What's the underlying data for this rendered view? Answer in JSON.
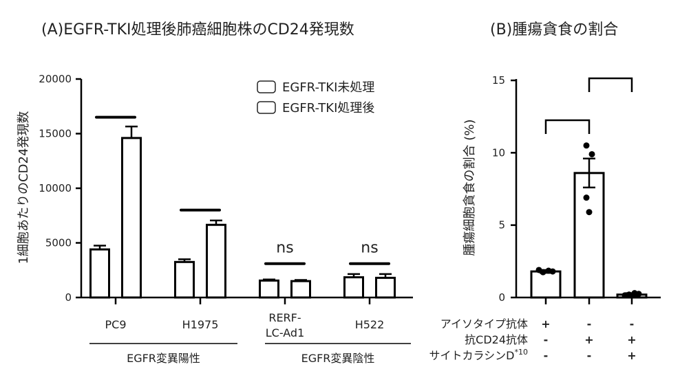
{
  "colors": {
    "ink": "#000000",
    "text": "#222222",
    "bar_fill": "#ffffff"
  },
  "chart_data": [
    {
      "type": "bar",
      "title": "(A)EGFR-TKI処理後肺癌細胞株のCD24発現数",
      "ylabel": "1細胞あたりのCD24発現数",
      "ylim": [
        0,
        20000
      ],
      "yticks": [
        "0",
        "5000",
        "10000",
        "15000",
        "20000"
      ],
      "categories": [
        "PC9",
        "H1975",
        "RERF-LC-Ad1",
        "H522"
      ],
      "category_label_lines": [
        [
          "PC9"
        ],
        [
          "H1975"
        ],
        [
          "RERF-",
          "LC-Ad1"
        ],
        [
          "H522"
        ]
      ],
      "series": [
        {
          "name": "EGFR-TKI未処理",
          "values": [
            4400,
            3250,
            1550,
            1850
          ],
          "errors": [
            350,
            250,
            100,
            300
          ]
        },
        {
          "name": "EGFR-TKI処理後",
          "values": [
            14600,
            6650,
            1500,
            1800
          ],
          "errors": [
            1050,
            400,
            100,
            350
          ]
        }
      ],
      "significance": [
        "",
        "",
        "ns",
        "ns"
      ],
      "groups": [
        {
          "label": "EGFR変異陽性",
          "categories": [
            0,
            1
          ]
        },
        {
          "label": "EGFR変異陰性",
          "categories": [
            2,
            3
          ]
        }
      ],
      "legend_position": "top-right",
      "grid": false
    },
    {
      "type": "bar",
      "title": "(B)腫瘍貪食の割合",
      "ylabel": "腫瘍細胞貪食の割合 (%)",
      "ylim": [
        0,
        15
      ],
      "yticks": [
        "0",
        "5",
        "10",
        "15"
      ],
      "values": [
        1.8,
        8.6,
        0.2
      ],
      "errors": [
        0.1,
        1.0,
        0.1
      ],
      "points": [
        [
          1.9,
          1.8,
          1.75,
          1.85
        ],
        [
          10.5,
          9.9,
          6.9,
          5.9
        ],
        [
          0.15,
          0.25,
          0.2,
          0.3
        ]
      ],
      "conditions": [
        {
          "label": "アイソタイプ抗体",
          "marks": [
            "+",
            "-",
            "-"
          ]
        },
        {
          "label": "抗CD24抗体",
          "marks": [
            "-",
            "+",
            "+"
          ]
        },
        {
          "label": "サイトカラシンD",
          "superscript": "*10",
          "marks": [
            "-",
            "-",
            "+"
          ]
        }
      ],
      "comparisons": [
        [
          0,
          1
        ],
        [
          1,
          2
        ]
      ],
      "grid": false
    }
  ]
}
